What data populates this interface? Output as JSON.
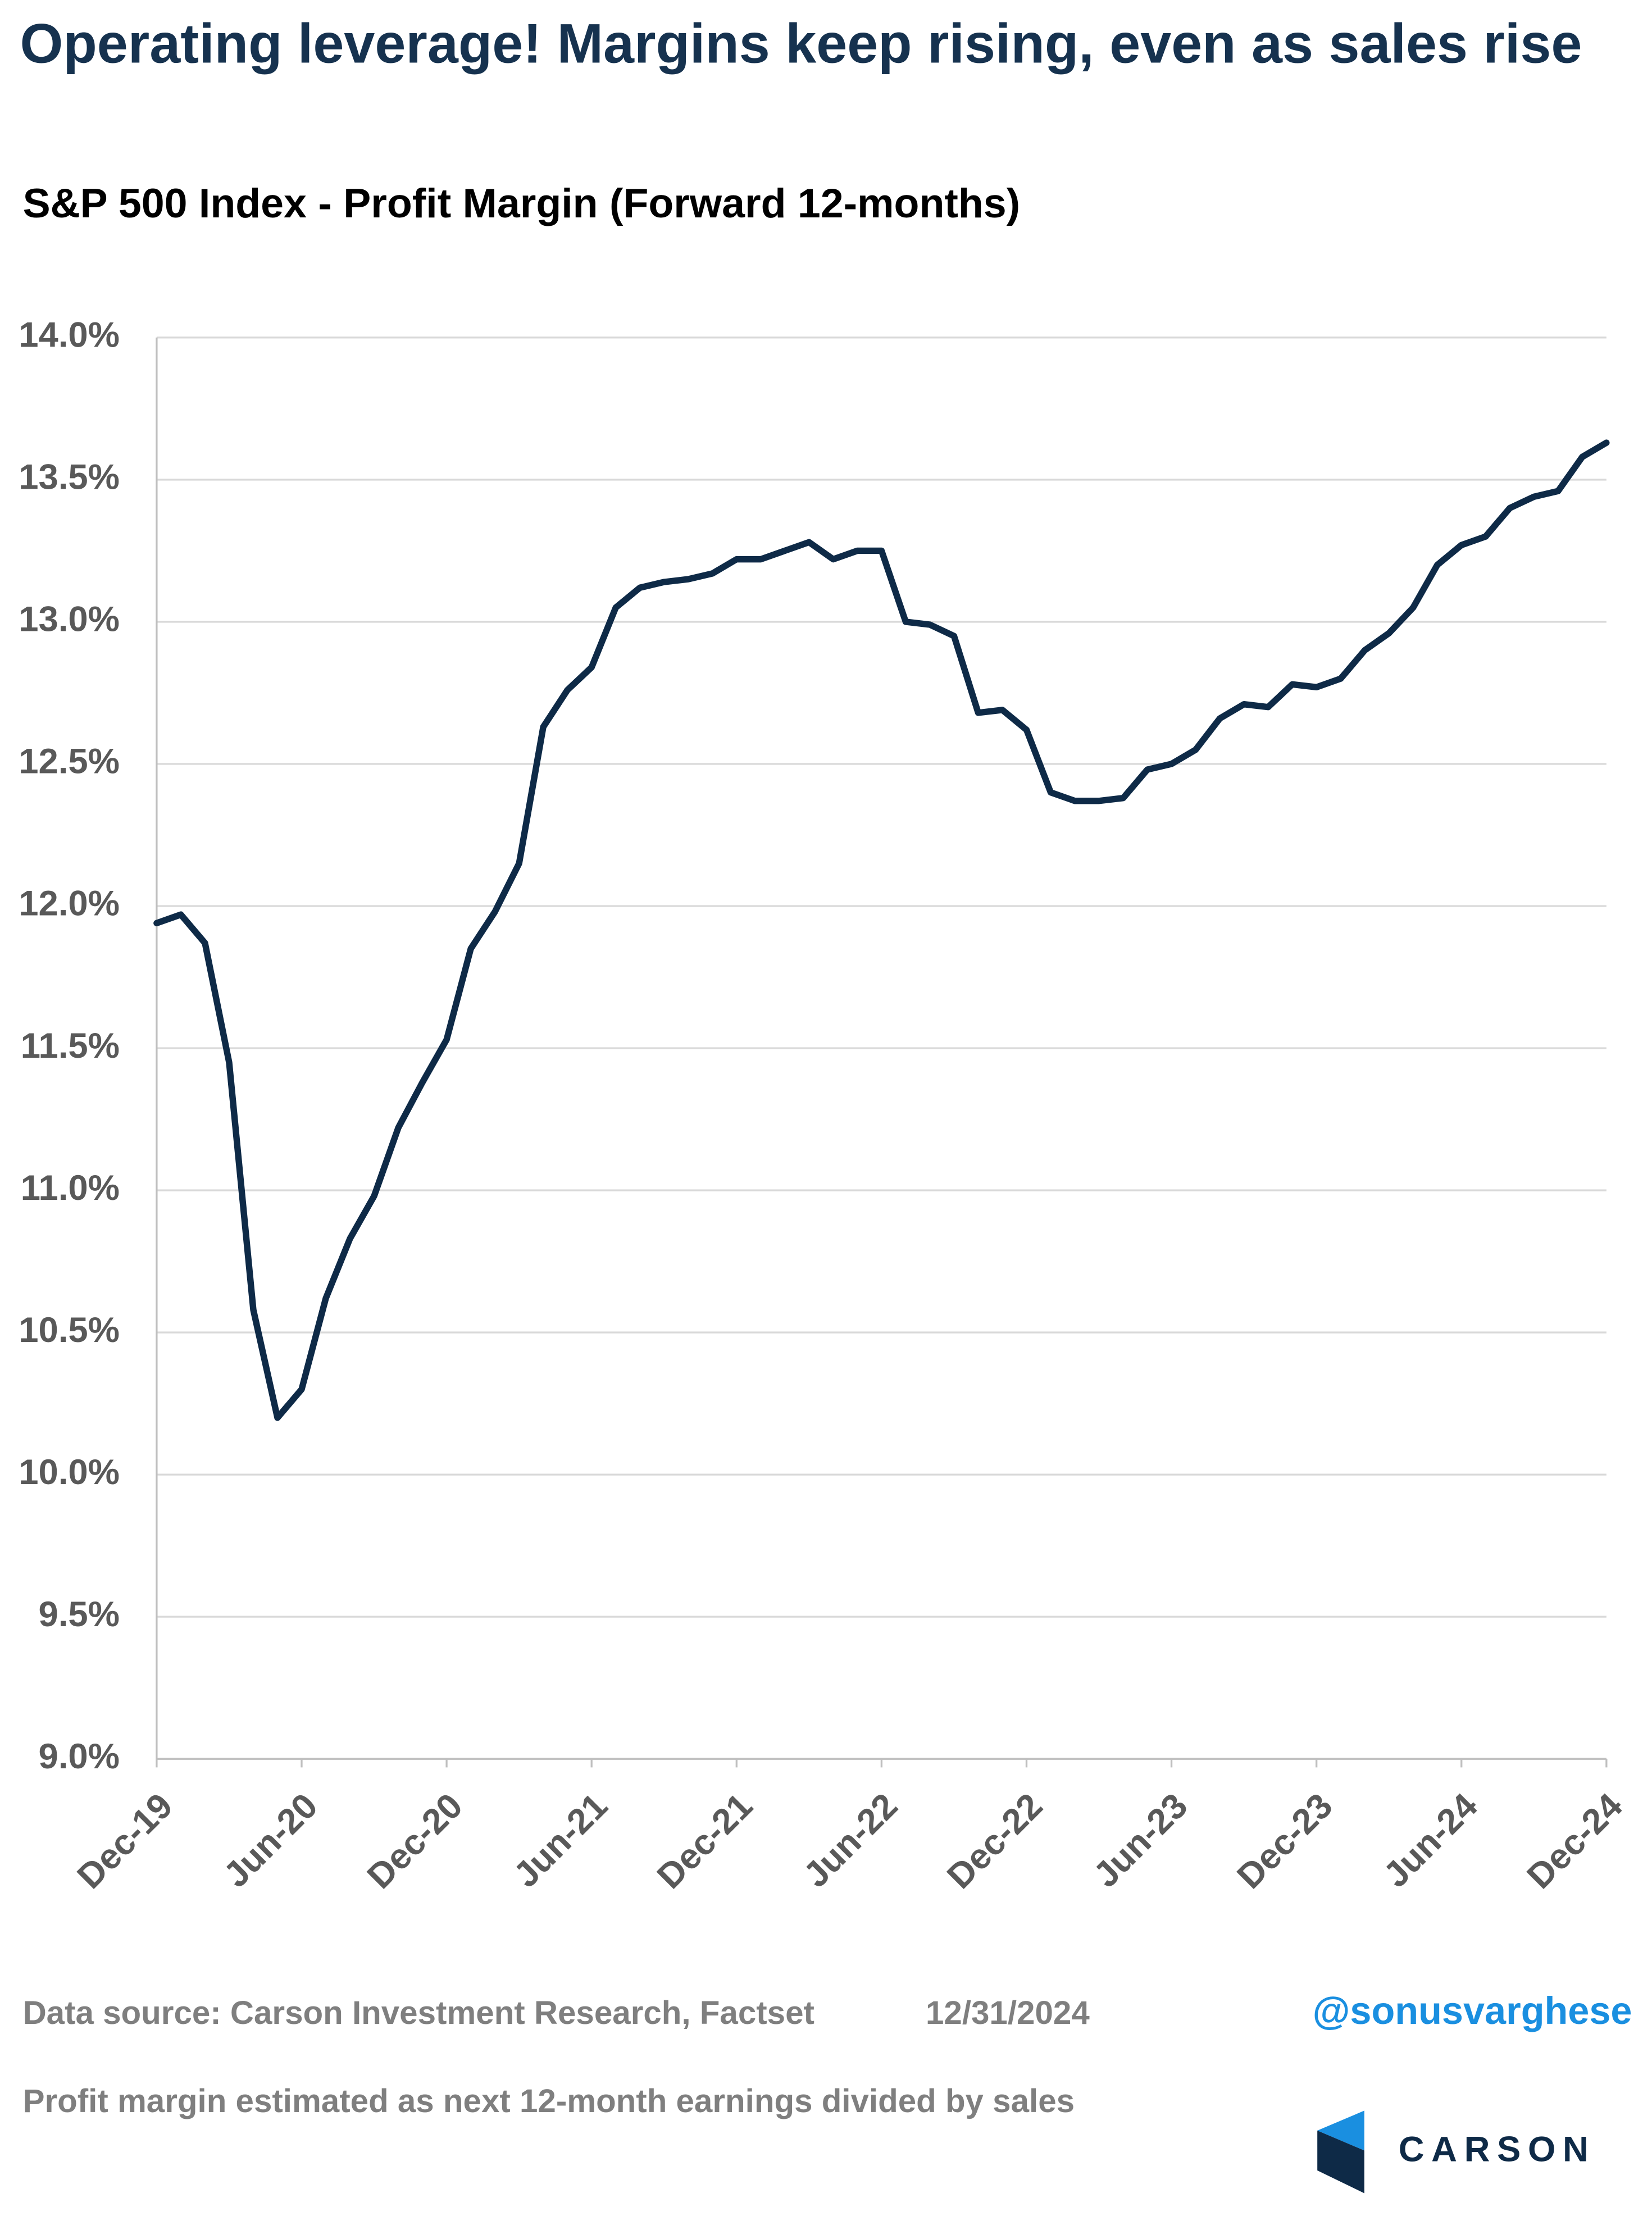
{
  "chart_data": {
    "type": "line",
    "title": "Operating leverage! Margins keep rising, even as sales rise",
    "subtitle": "S&P 500 Index - Profit Margin (Forward 12-months)",
    "x": [
      "Dec-19",
      "Jan-20",
      "Feb-20",
      "Mar-20",
      "Apr-20",
      "May-20",
      "Jun-20",
      "Jul-20",
      "Aug-20",
      "Sep-20",
      "Oct-20",
      "Nov-20",
      "Dec-20",
      "Jan-21",
      "Feb-21",
      "Mar-21",
      "Apr-21",
      "May-21",
      "Jun-21",
      "Jul-21",
      "Aug-21",
      "Sep-21",
      "Oct-21",
      "Nov-21",
      "Dec-21",
      "Jan-22",
      "Feb-22",
      "Mar-22",
      "Apr-22",
      "May-22",
      "Jun-22",
      "Jul-22",
      "Aug-22",
      "Sep-22",
      "Oct-22",
      "Nov-22",
      "Dec-22",
      "Jan-23",
      "Feb-23",
      "Mar-23",
      "Apr-23",
      "May-23",
      "Jun-23",
      "Jul-23",
      "Aug-23",
      "Sep-23",
      "Oct-23",
      "Nov-23",
      "Dec-23",
      "Jan-24",
      "Feb-24",
      "Mar-24",
      "Apr-24",
      "May-24",
      "Jun-24",
      "Jul-24",
      "Aug-24",
      "Sep-24",
      "Oct-24",
      "Nov-24",
      "Dec-24"
    ],
    "series": [
      {
        "color": "#0e2a47",
        "values": [
          11.94,
          11.97,
          11.87,
          11.45,
          10.58,
          10.2,
          10.3,
          10.62,
          10.83,
          10.98,
          11.22,
          11.38,
          11.53,
          11.85,
          11.98,
          12.15,
          12.63,
          12.76,
          12.84,
          13.05,
          13.12,
          13.14,
          13.15,
          13.17,
          13.22,
          13.22,
          13.25,
          13.28,
          13.22,
          13.25,
          13.25,
          13.0,
          12.99,
          12.95,
          12.68,
          12.69,
          12.62,
          12.4,
          12.37,
          12.37,
          12.38,
          12.48,
          12.5,
          12.55,
          12.66,
          12.71,
          12.7,
          12.78,
          12.77,
          12.8,
          12.9,
          12.96,
          13.05,
          13.2,
          13.27,
          13.3,
          13.4,
          13.44,
          13.46,
          13.58,
          13.63
        ]
      }
    ],
    "xticks": [
      "Dec-19",
      "Jun-20",
      "Dec-20",
      "Jun-21",
      "Dec-21",
      "Jun-22",
      "Dec-22",
      "Jun-23",
      "Dec-23",
      "Jun-24",
      "Dec-24"
    ],
    "ylim": [
      9,
      14
    ],
    "yticks": [
      {
        "value": 9,
        "label": "9.0%"
      },
      {
        "value": 9.5,
        "label": "9.5%"
      },
      {
        "value": 10,
        "label": "10.0%"
      },
      {
        "value": 10.5,
        "label": "10.5%"
      },
      {
        "value": 11,
        "label": "11.0%"
      },
      {
        "value": 11.5,
        "label": "11.5%"
      },
      {
        "value": 12,
        "label": "12.0%"
      },
      {
        "value": 12.5,
        "label": "12.5%"
      },
      {
        "value": 13,
        "label": "13.0%"
      },
      {
        "value": 13.5,
        "label": "13.5%"
      },
      {
        "value": 14,
        "label": "14.0%"
      }
    ],
    "grid": true,
    "source": "Data source: Carson Investment Research, Factset",
    "date": "12/31/2024",
    "handle": "@sonusvarghese",
    "note": "Profit margin estimated as next 12-month earnings divided by sales",
    "logo": "CARSON"
  }
}
